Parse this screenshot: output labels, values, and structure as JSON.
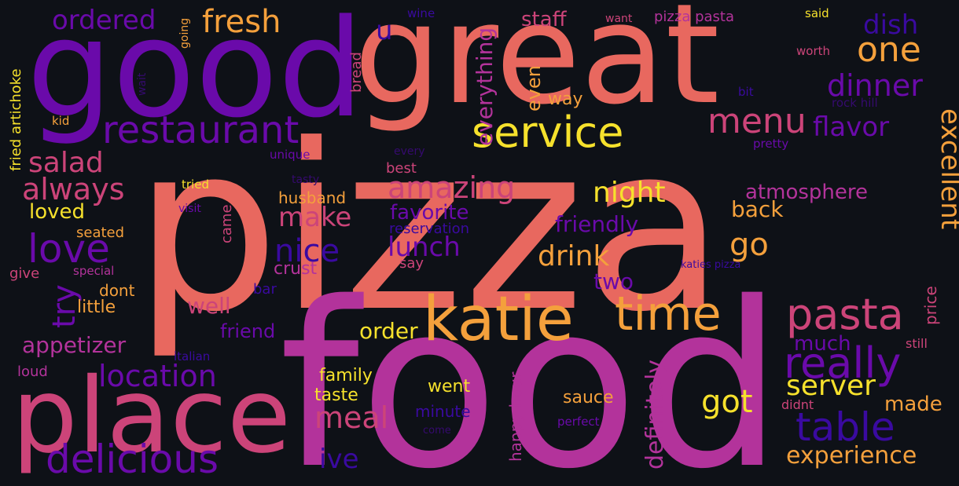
{
  "background": "#0e1117",
  "palette": {
    "coral": "#e8685f",
    "magenta": "#b3339b",
    "purple": "#6a0aaa",
    "orange": "#f4a03c",
    "yellow": "#f6e12c",
    "rose": "#cc4479",
    "indigo": "#3a0aa0",
    "deep": "#2a0870",
    "faint": "#350a6e"
  },
  "words": [
    {
      "text": "pizza",
      "color": "#e8685f"
    },
    {
      "text": "food",
      "color": "#b3339b"
    },
    {
      "text": "good",
      "color": "#6a0aaa"
    },
    {
      "text": "great",
      "color": "#e8685f"
    },
    {
      "text": "place",
      "color": "#cc4479"
    },
    {
      "text": "katie",
      "color": "#f4a03c"
    },
    {
      "text": "service",
      "color": "#f6e12c"
    },
    {
      "text": "restaurant",
      "color": "#6a0aaa"
    },
    {
      "text": "time",
      "color": "#f4a03c"
    },
    {
      "text": "pasta",
      "color": "#cc4479"
    },
    {
      "text": "really",
      "color": "#6a0aaa"
    },
    {
      "text": "delicious",
      "color": "#6a0aaa"
    },
    {
      "text": "menu",
      "color": "#cc4479"
    },
    {
      "text": "love",
      "color": "#6a0aaa"
    },
    {
      "text": "table",
      "color": "#3a0aa0"
    },
    {
      "text": "location",
      "color": "#6a0aaa"
    },
    {
      "text": "amazing",
      "color": "#cc4479"
    },
    {
      "text": "fresh",
      "color": "#f4a03c"
    },
    {
      "text": "always",
      "color": "#cc4479"
    },
    {
      "text": "salad",
      "color": "#cc4479"
    },
    {
      "text": "one",
      "color": "#f4a03c"
    },
    {
      "text": "dinner",
      "color": "#6a0aaa"
    },
    {
      "text": "ordered",
      "color": "#6a0aaa"
    },
    {
      "text": "experience",
      "color": "#f4a03c"
    },
    {
      "text": "drink",
      "color": "#f4a03c"
    },
    {
      "text": "got",
      "color": "#f6e12c"
    },
    {
      "text": "server",
      "color": "#f6e12c"
    },
    {
      "text": "meal",
      "color": "#cc4479"
    },
    {
      "text": "nice",
      "color": "#3a0aa0"
    },
    {
      "text": "lunch",
      "color": "#6a0aaa"
    },
    {
      "text": "make",
      "color": "#cc4479"
    },
    {
      "text": "night",
      "color": "#f6e12c"
    },
    {
      "text": "excellent",
      "color": "#f4a03c"
    },
    {
      "text": "flavor",
      "color": "#6a0aaa"
    },
    {
      "text": "try",
      "color": "#6a0aaa"
    },
    {
      "text": "go",
      "color": "#f4a03c"
    },
    {
      "text": "appetizer",
      "color": "#b3339b"
    },
    {
      "text": "definitely",
      "color": "#b3339b"
    },
    {
      "text": "dish",
      "color": "#3a0aa0"
    },
    {
      "text": "atmosphere",
      "color": "#b3339b"
    },
    {
      "text": "everything",
      "color": "#b3339b"
    },
    {
      "text": "favorite",
      "color": "#6a0aaa"
    },
    {
      "text": "friendly",
      "color": "#6a0aaa"
    },
    {
      "text": "back",
      "color": "#f4a03c"
    },
    {
      "text": "well",
      "color": "#cc4479"
    },
    {
      "text": "order",
      "color": "#f6e12c"
    },
    {
      "text": "staff",
      "color": "#cc4479"
    },
    {
      "text": "ive",
      "color": "#3a0aa0"
    },
    {
      "text": "loved",
      "color": "#f6e12c"
    },
    {
      "text": "much",
      "color": "#6a0aaa"
    },
    {
      "text": "made",
      "color": "#f4a03c"
    },
    {
      "text": "u",
      "color": "#3a0aa0"
    },
    {
      "text": "two",
      "color": "#6a0aaa"
    },
    {
      "text": "way",
      "color": "#f4a03c"
    },
    {
      "text": "even",
      "color": "#f4a03c"
    },
    {
      "text": "friend",
      "color": "#6a0aaa"
    },
    {
      "text": "little",
      "color": "#f4a03c"
    },
    {
      "text": "family",
      "color": "#f6e12c"
    },
    {
      "text": "taste",
      "color": "#f6e12c"
    },
    {
      "text": "went",
      "color": "#f6e12c"
    },
    {
      "text": "sauce",
      "color": "#f4a03c"
    },
    {
      "text": "husband",
      "color": "#f4a03c"
    },
    {
      "text": "crust",
      "color": "#b3339b"
    },
    {
      "text": "happy hour",
      "color": "#b3339b"
    },
    {
      "text": "price",
      "color": "#cc4479"
    },
    {
      "text": "minute",
      "color": "#3a0aa0"
    },
    {
      "text": "dont",
      "color": "#f4a03c"
    },
    {
      "text": "seated",
      "color": "#f4a03c"
    },
    {
      "text": "came",
      "color": "#cc4479"
    },
    {
      "text": "bread",
      "color": "#cc4479"
    },
    {
      "text": "fried artichoke",
      "color": "#f6e12c"
    },
    {
      "text": "pizza pasta",
      "color": "#b3339b"
    },
    {
      "text": "loud",
      "color": "#b3339b"
    },
    {
      "text": "give",
      "color": "#cc4479"
    },
    {
      "text": "didnt",
      "color": "#cc4479"
    },
    {
      "text": "still",
      "color": "#cc4479"
    },
    {
      "text": "bar",
      "color": "#3a0aa0"
    },
    {
      "text": "say",
      "color": "#cc4479"
    },
    {
      "text": "best",
      "color": "#cc4479"
    },
    {
      "text": "reservation",
      "color": "#3a0aa0"
    },
    {
      "text": "worth",
      "color": "#cc4479"
    },
    {
      "text": "said",
      "color": "#f6e12c"
    },
    {
      "text": "want",
      "color": "#cc4479"
    },
    {
      "text": "wine",
      "color": "#3a0aa0"
    },
    {
      "text": "going",
      "color": "#f4a03c"
    },
    {
      "text": "wait",
      "color": "#350a6e"
    },
    {
      "text": "kid",
      "color": "#f4a03c"
    },
    {
      "text": "tasty",
      "color": "#350a6e"
    },
    {
      "text": "tried",
      "color": "#f6e12c"
    },
    {
      "text": "visit",
      "color": "#6a0aaa"
    },
    {
      "text": "every",
      "color": "#350a6e"
    },
    {
      "text": "unique",
      "color": "#6a0aaa"
    },
    {
      "text": "special",
      "color": "#b3339b"
    },
    {
      "text": "italian",
      "color": "#3a0aa0"
    },
    {
      "text": "come",
      "color": "#350a6e"
    },
    {
      "text": "perfect",
      "color": "#6a0aaa"
    },
    {
      "text": "rock hill",
      "color": "#350a6e"
    },
    {
      "text": "bit",
      "color": "#3a0aa0"
    },
    {
      "text": "pretty",
      "color": "#6a0aaa"
    },
    {
      "text": "katies pizza",
      "color": "#3a0aa0"
    }
  ]
}
